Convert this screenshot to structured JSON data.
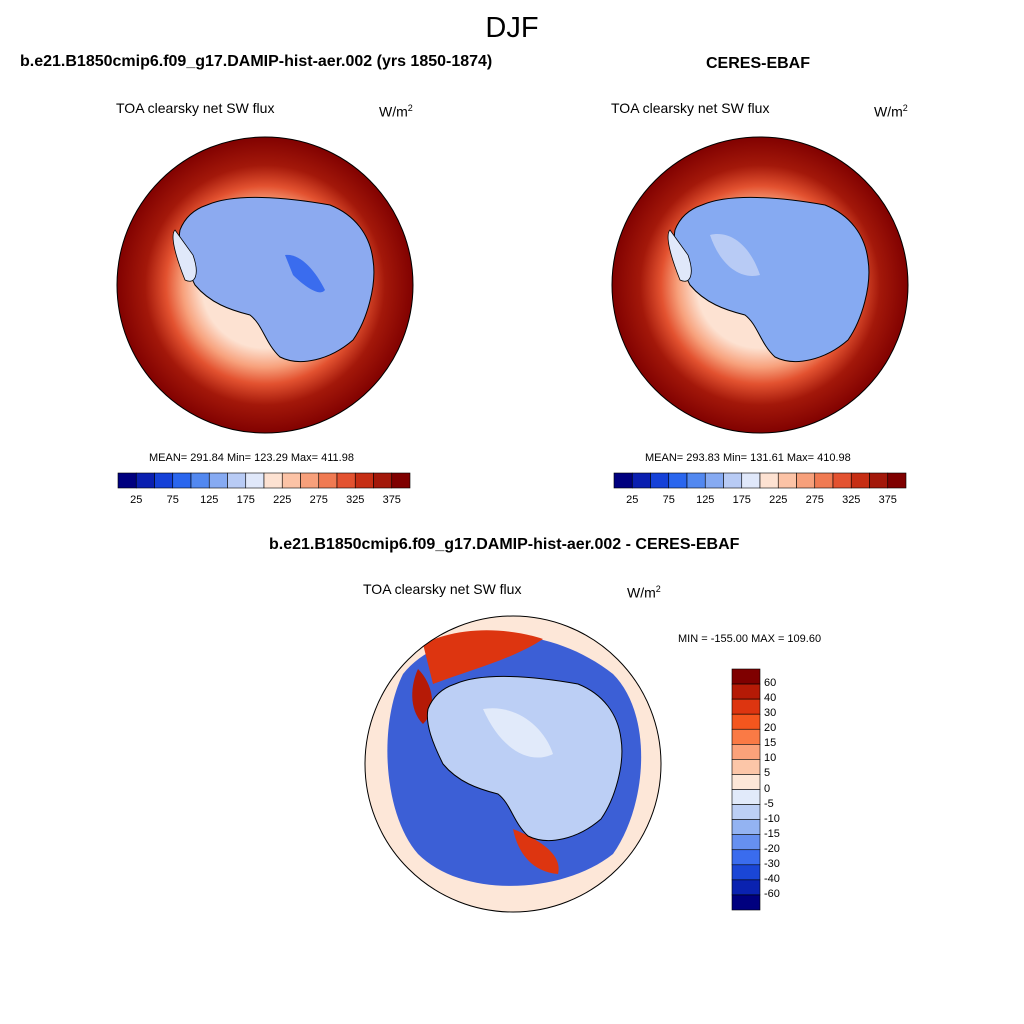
{
  "season": "DJF",
  "panels": [
    {
      "title": "b.e21.B1850cmip6.f09_g17.DAMIP-hist-aer.002 (yrs 1850-1874)",
      "variable": "TOA clearsky net SW flux",
      "units_base": "W/m",
      "units_exp": "2",
      "stats": "MEAN= 291.84  Min= 123.29  Max= 411.98"
    },
    {
      "title": "CERES-EBAF",
      "variable": "TOA clearsky net SW flux",
      "units_base": "W/m",
      "units_exp": "2",
      "stats": "MEAN= 293.83  Min= 131.61  Max= 410.98"
    },
    {
      "title": "b.e21.B1850cmip6.f09_g17.DAMIP-hist-aer.002 - CERES-EBAF",
      "variable": "TOA clearsky net SW flux",
      "units_base": "W/m",
      "units_exp": "2",
      "stats": "MIN = -155.00 MAX = 109.60"
    }
  ],
  "colorbar_abs": {
    "labels": [
      "25",
      "75",
      "125",
      "175",
      "225",
      "275",
      "325",
      "375"
    ],
    "colors": [
      "#00007f",
      "#0a1fb0",
      "#1541d8",
      "#2a66ee",
      "#5288f0",
      "#86aaf2",
      "#b8cbf5",
      "#e0e8fa",
      "#fde2d2",
      "#fcc3a6",
      "#f7a07b",
      "#f07a52",
      "#e35230",
      "#c62e14",
      "#a3180a",
      "#7f0000"
    ]
  },
  "colorbar_diff": {
    "labels": [
      "60",
      "40",
      "30",
      "20",
      "15",
      "10",
      "5",
      "0",
      "-5",
      "-10",
      "-15",
      "-20",
      "-30",
      "-40",
      "-60"
    ],
    "colors": [
      "#7f0000",
      "#b51a06",
      "#dd3510",
      "#f4561e",
      "#fa7a45",
      "#fba27a",
      "#fcc6a8",
      "#fde7d8",
      "#e1eafa",
      "#bccff5",
      "#93b3f2",
      "#6690f0",
      "#3a6cee",
      "#1a46d6",
      "#0a22b0",
      "#00007f"
    ]
  },
  "chart_data": [
    {
      "type": "heatmap",
      "title": "b.e21.B1850cmip6.f09_g17.DAMIP-hist-aer.002 (yrs 1850-1874)",
      "variable": "TOA clearsky net SW flux",
      "units": "W/m2",
      "projection": "south polar stereographic",
      "mean": 291.84,
      "min": 123.29,
      "max": 411.98,
      "levels": [
        25,
        50,
        75,
        100,
        125,
        150,
        175,
        200,
        225,
        250,
        275,
        300,
        325,
        350,
        375
      ]
    },
    {
      "type": "heatmap",
      "title": "CERES-EBAF",
      "variable": "TOA clearsky net SW flux",
      "units": "W/m2",
      "projection": "south polar stereographic",
      "mean": 293.83,
      "min": 131.61,
      "max": 410.98,
      "levels": [
        25,
        50,
        75,
        100,
        125,
        150,
        175,
        200,
        225,
        250,
        275,
        300,
        325,
        350,
        375
      ]
    },
    {
      "type": "heatmap",
      "title": "b.e21.B1850cmip6.f09_g17.DAMIP-hist-aer.002 - CERES-EBAF",
      "variable": "TOA clearsky net SW flux",
      "units": "W/m2",
      "projection": "south polar stereographic",
      "min": -155.0,
      "max": 109.6,
      "levels": [
        -60,
        -40,
        -30,
        -20,
        -15,
        -10,
        -5,
        0,
        5,
        10,
        15,
        20,
        30,
        40,
        60
      ]
    }
  ]
}
